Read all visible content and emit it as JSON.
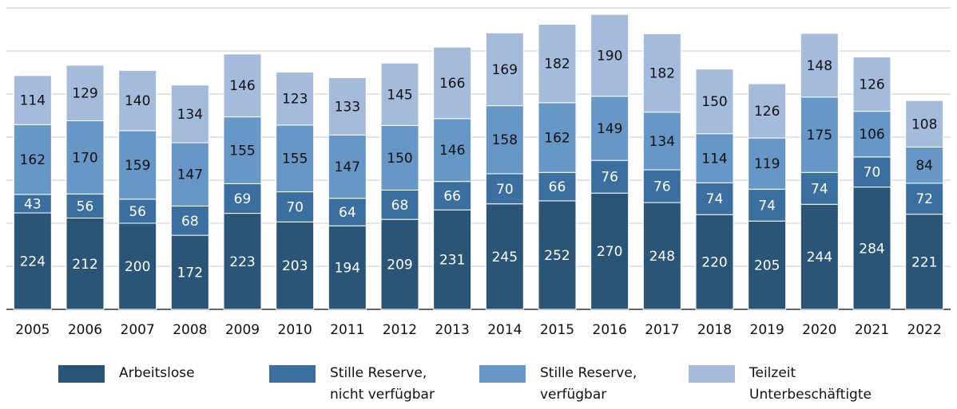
{
  "chart_data": {
    "type": "stacked_bar",
    "categories": [
      "2005",
      "2006",
      "2007",
      "2008",
      "2009",
      "2010",
      "2011",
      "2012",
      "2013",
      "2014",
      "2015",
      "2016",
      "2017",
      "2018",
      "2019",
      "2020",
      "2021",
      "2022"
    ],
    "series": [
      {
        "name": "Arbeitslose",
        "color": "#2b5577",
        "label_color": "#ffffff",
        "values": [
          224,
          212,
          200,
          172,
          223,
          203,
          194,
          209,
          231,
          245,
          252,
          270,
          248,
          220,
          205,
          244,
          284,
          221
        ]
      },
      {
        "name": "Stille Reserve,\nnicht verfügbar",
        "color": "#3a6f9f",
        "label_color": "#ffffff",
        "values": [
          43,
          56,
          56,
          68,
          69,
          70,
          64,
          68,
          66,
          70,
          66,
          76,
          76,
          74,
          74,
          74,
          70,
          72
        ]
      },
      {
        "name": "Stille Reserve,\nverfügbar",
        "color": "#6797c6",
        "label_color": "#111111",
        "values": [
          162,
          170,
          159,
          147,
          155,
          155,
          147,
          150,
          146,
          158,
          162,
          149,
          134,
          114,
          119,
          175,
          106,
          84
        ]
      },
      {
        "name": "Teilzeit\nUnterbeschäftigte",
        "color": "#a4bbdc",
        "label_color": "#111111",
        "values": [
          114,
          129,
          140,
          134,
          146,
          123,
          133,
          145,
          166,
          169,
          182,
          190,
          182,
          150,
          126,
          148,
          126,
          108
        ]
      }
    ],
    "ylim": [
      0,
      700
    ],
    "yticks": [
      0,
      100,
      200,
      300,
      400,
      500,
      600,
      700
    ],
    "grid": true
  }
}
